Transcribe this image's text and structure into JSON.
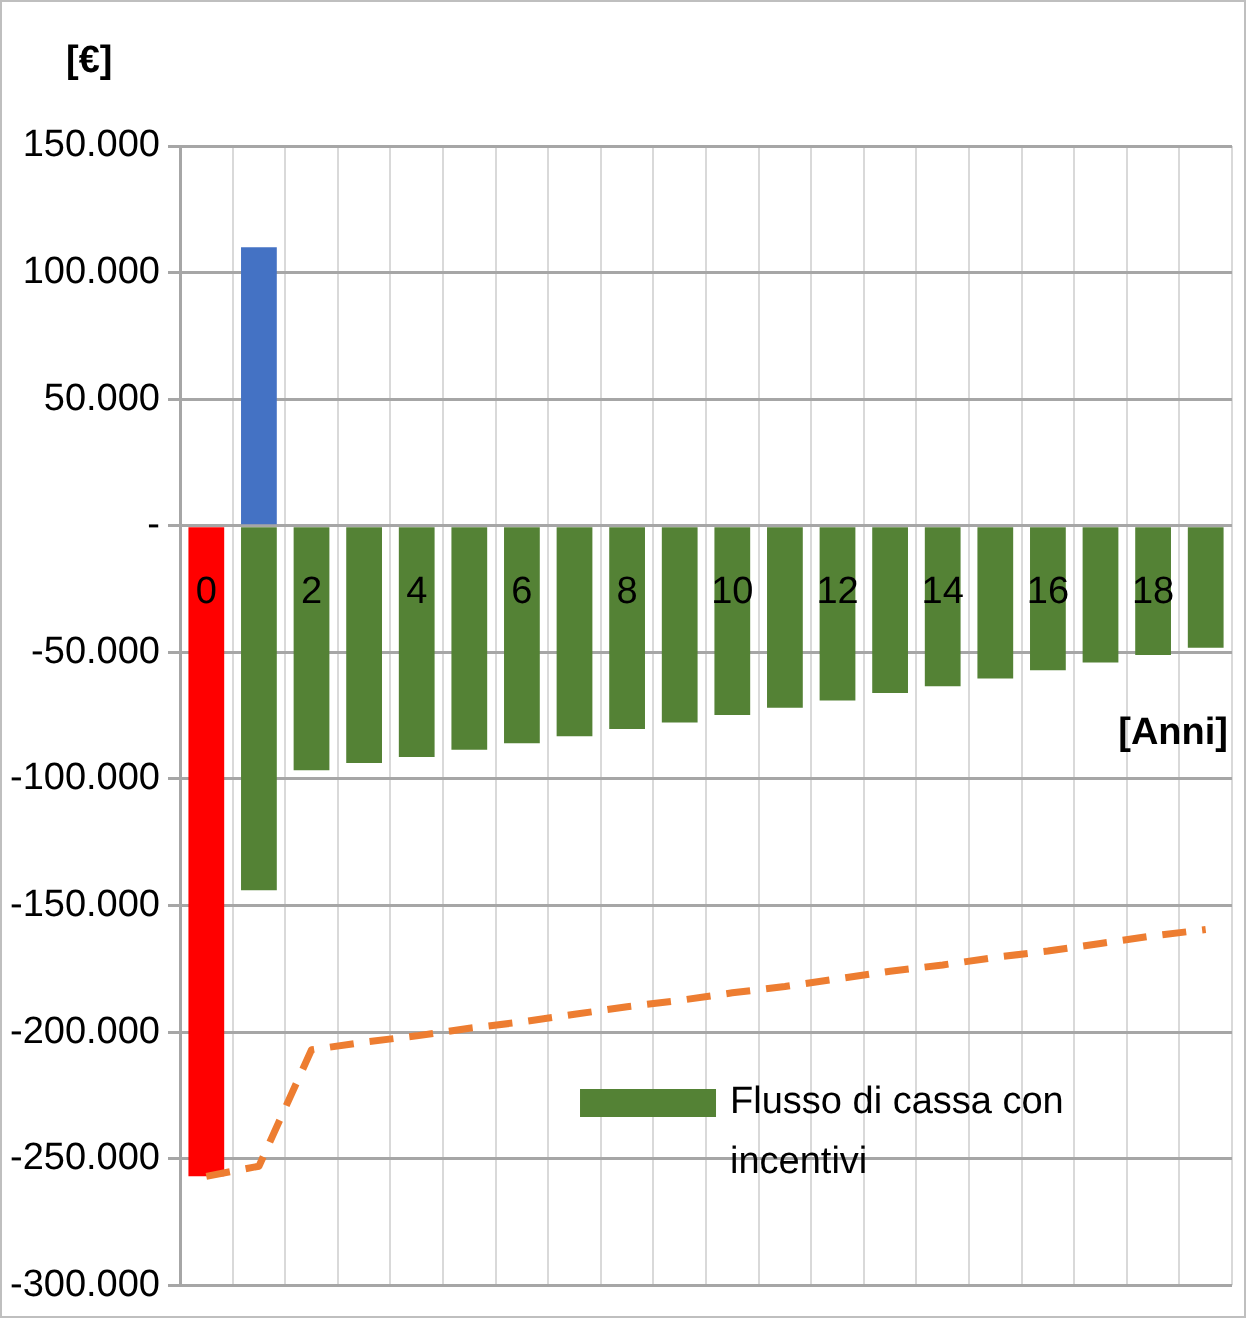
{
  "chart_data": {
    "type": "bar",
    "stacked": true,
    "xlabel": "[Anni]",
    "ylabel": "[€]",
    "categories": [
      "0",
      null,
      "2",
      null,
      "4",
      null,
      "6",
      null,
      "8",
      null,
      "10",
      null,
      "12",
      null,
      "14",
      null,
      "16",
      null,
      "18",
      null
    ],
    "series": [
      {
        "name": "Flusso di cassa con incentivi",
        "color": "#548235",
        "colors": [
          "#ff0000",
          "#548235",
          "#548235",
          "#548235",
          "#548235",
          "#548235",
          "#548235",
          "#548235",
          "#548235",
          "#548235",
          "#548235",
          "#548235",
          "#548235",
          "#548235",
          "#548235",
          "#548235",
          "#548235",
          "#548235",
          "#548235",
          "#548235"
        ],
        "values": [
          -257000,
          -144000,
          -96600,
          -93700,
          -91400,
          -88500,
          -85900,
          -83200,
          -80300,
          -77700,
          -74800,
          -71900,
          -69000,
          -66100,
          -63400,
          -60300,
          -57100,
          -54000,
          -51100,
          -48200
        ]
      },
      {
        "color": "#4472c4",
        "values": [
          null,
          110000,
          null,
          null,
          null,
          null,
          null,
          null,
          null,
          null,
          null,
          null,
          null,
          null,
          null,
          null,
          null,
          null,
          null,
          null
        ]
      },
      {
        "type": "line",
        "color": "#ed7d31",
        "line_style": "dashed",
        "marker": "none",
        "values": [
          -257000,
          -253000,
          -207000,
          -204000,
          -201500,
          -198500,
          -196000,
          -193000,
          -190000,
          -187500,
          -184500,
          -182000,
          -179000,
          -176000,
          -173500,
          -170500,
          -168000,
          -165000,
          -162000,
          -159500
        ]
      }
    ],
    "ylim": [
      -300000,
      150000
    ],
    "yticks": [
      {
        "value": -300000,
        "label": "-300.000"
      },
      {
        "value": -250000,
        "label": "-250.000"
      },
      {
        "value": -200000,
        "label": "-200.000"
      },
      {
        "value": -150000,
        "label": "-150.000"
      },
      {
        "value": -100000,
        "label": "-100.000"
      },
      {
        "value": -50000,
        "label": "-50.000"
      },
      {
        "value": 0,
        "label": "-"
      },
      {
        "value": 50000,
        "label": "50.000"
      },
      {
        "value": 100000,
        "label": "100.000"
      },
      {
        "value": 150000,
        "label": "150.000"
      }
    ],
    "grid": true,
    "legend": "bottom right"
  }
}
